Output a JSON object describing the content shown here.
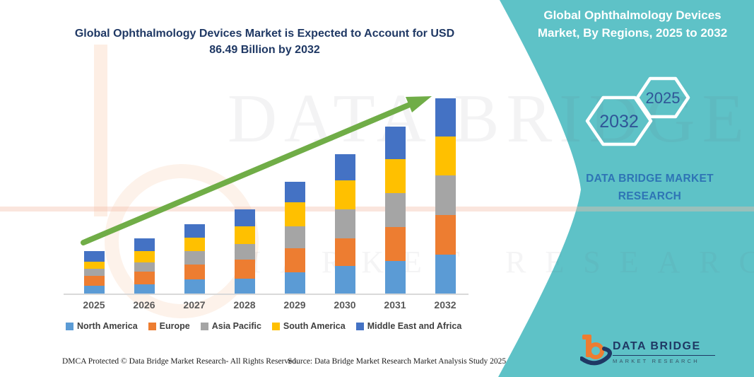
{
  "header": {
    "left_title": "Global Ophthalmology Devices Market is Expected to Account for USD 86.49 Billion by 2032",
    "right_title": "Global Ophthalmology Devices Market, By Regions, 2025 to 2032"
  },
  "side_panel": {
    "hexagons": [
      {
        "label": "2032"
      },
      {
        "label": "2025"
      }
    ],
    "brand_text": "DATA BRIDGE MARKET RESEARCH"
  },
  "watermark": {
    "line1": "DATA BRIDGE",
    "line2": "MARKET RESEARCH"
  },
  "chart_data": {
    "type": "bar",
    "stacked": true,
    "title": "Global Ophthalmology Devices Market is Expected to Account for USD 86.49 Billion by 2032",
    "unit": "USD Billion",
    "categories": [
      "2025",
      "2026",
      "2027",
      "2028",
      "2029",
      "2030",
      "2031",
      "2032"
    ],
    "series": [
      {
        "name": "North America",
        "color": "#5B9BD5",
        "values": [
          3.4,
          4.1,
          6.3,
          6.6,
          9.4,
          12.2,
          14.4,
          17.2
        ]
      },
      {
        "name": "Europe",
        "color": "#ED7D31",
        "values": [
          4.4,
          5.6,
          6.6,
          8.5,
          10.7,
          12.2,
          15.0,
          17.6
        ]
      },
      {
        "name": "Asia Pacific",
        "color": "#A5A5A5",
        "values": [
          3.1,
          4.1,
          6.0,
          6.9,
          9.7,
          12.9,
          15.0,
          17.6
        ]
      },
      {
        "name": "South America",
        "color": "#FFC000",
        "values": [
          3.1,
          5.0,
          6.0,
          7.8,
          10.7,
          12.9,
          15.0,
          17.2
        ]
      },
      {
        "name": "Middle East and Africa",
        "color": "#4472C4",
        "values": [
          4.7,
          5.6,
          6.0,
          7.5,
          9.1,
          11.6,
          14.7,
          16.9
        ]
      }
    ],
    "totals_estimated": [
      18.7,
      24.4,
      30.9,
      37.3,
      49.6,
      61.8,
      74.1,
      86.5
    ],
    "final_value_label": "USD 86.49 Billion by 2032",
    "xlabel": "",
    "ylabel": "",
    "y_axis_visible": false,
    "grid": false,
    "legend_position": "bottom",
    "trend_arrow_color": "#70AD47"
  },
  "footer": {
    "dmca": "DMCA Protected © Data Bridge Market Research-  All Rights Reserved.",
    "source": "Source: Data Bridge Market Research  Market Analysis Study 2025"
  },
  "logo": {
    "name": "DATA BRIDGE",
    "subtext": "MARKET RESEARCH"
  },
  "colors": {
    "teal_panel": "#5EC2C7",
    "title_navy": "#1F3864",
    "hexagon_year_blue": "#2F5597",
    "brand_text_blue": "#2E74B5",
    "axis_gray": "#D9D9D9",
    "label_gray": "#595959"
  }
}
